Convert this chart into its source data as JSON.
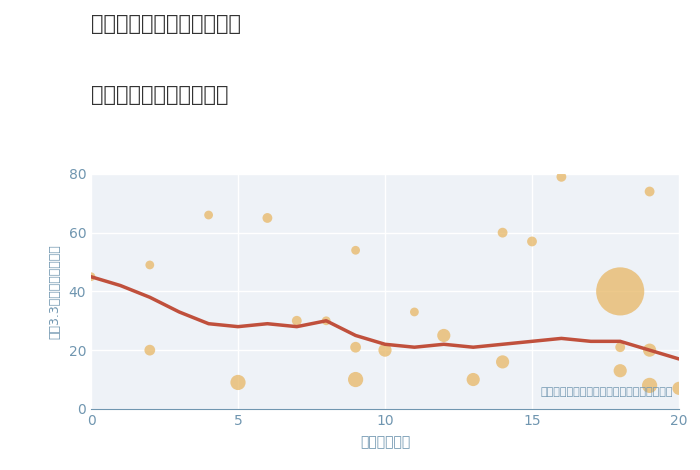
{
  "title_line1": "兵庫県豊岡市出石町福住の",
  "title_line2": "駅距離別中古戸建て価格",
  "xlabel": "駅距離（分）",
  "ylabel": "坪（3.3㎡）単価（万円）",
  "annotation": "円の大きさは、取引のあった物件面積を示す",
  "xlim": [
    0,
    20
  ],
  "ylim": [
    0,
    80
  ],
  "xticks": [
    0,
    5,
    10,
    15,
    20
  ],
  "yticks": [
    0,
    20,
    40,
    60,
    80
  ],
  "scatter_x": [
    0,
    2,
    2,
    4,
    5,
    6,
    7,
    8,
    9,
    9,
    9,
    10,
    11,
    12,
    13,
    14,
    14,
    15,
    16,
    18,
    18,
    18,
    19,
    19,
    19,
    20
  ],
  "scatter_y": [
    45,
    20,
    49,
    66,
    9,
    65,
    30,
    30,
    21,
    10,
    54,
    20,
    33,
    25,
    10,
    16,
    60,
    57,
    79,
    40,
    13,
    21,
    74,
    8,
    20,
    7
  ],
  "scatter_size": [
    40,
    60,
    40,
    40,
    120,
    50,
    50,
    40,
    60,
    120,
    40,
    90,
    40,
    90,
    90,
    90,
    50,
    50,
    50,
    1200,
    90,
    50,
    50,
    120,
    90,
    90
  ],
  "scatter_color": "#E8B96A",
  "scatter_alpha": 0.78,
  "trend_x": [
    0,
    1,
    2,
    3,
    4,
    5,
    6,
    7,
    8,
    9,
    10,
    11,
    12,
    13,
    14,
    15,
    16,
    17,
    18,
    19,
    20
  ],
  "trend_y": [
    45,
    42,
    38,
    33,
    29,
    28,
    29,
    28,
    30,
    25,
    22,
    21,
    22,
    21,
    22,
    23,
    24,
    23,
    23,
    20,
    17
  ],
  "trend_color": "#C0503C",
  "trend_linewidth": 2.5,
  "bg_color": "#FFFFFF",
  "plot_bg_color": "#EEF2F7",
  "grid_color": "#FFFFFF",
  "title_color": "#333333",
  "label_color": "#7096B0",
  "tick_color": "#7096B0",
  "annotation_color": "#7096B0"
}
